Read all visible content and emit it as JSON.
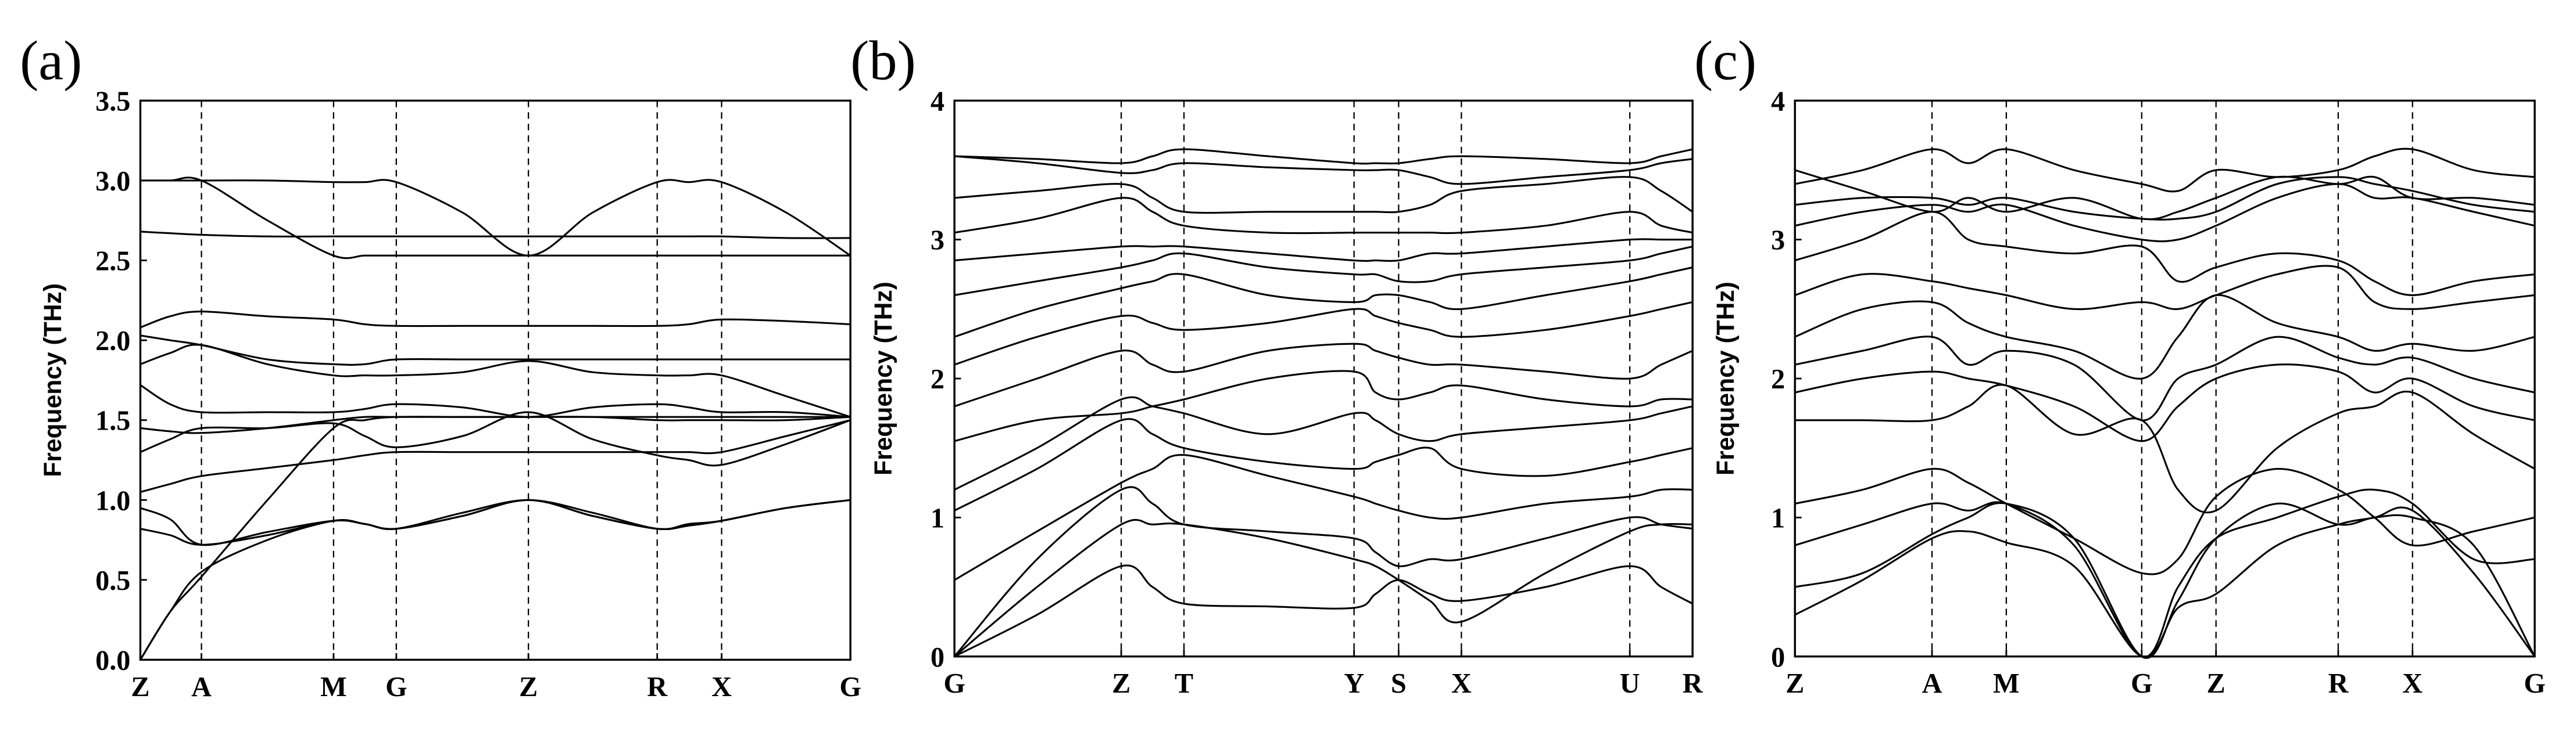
{
  "chart_data": [
    {
      "type": "line",
      "label": "(a)",
      "ylabel": "Frequency (THz)",
      "grid": true,
      "xlim": [
        0,
        430
      ],
      "ylim": [
        0,
        3.5
      ],
      "xticks": [
        {
          "value": 0,
          "label": "Z"
        },
        {
          "value": 37,
          "label": "A"
        },
        {
          "value": 117,
          "label": "M"
        },
        {
          "value": 155,
          "label": "G"
        },
        {
          "value": 235,
          "label": "Z"
        },
        {
          "value": 313,
          "label": "R"
        },
        {
          "value": 352,
          "label": "X"
        },
        {
          "value": 430,
          "label": "G"
        }
      ],
      "yticks": [
        {
          "value": 0,
          "label": "0.0"
        },
        0.5,
        {
          "value": 1,
          "label": "1.0"
        },
        1.5,
        {
          "value": 2,
          "label": "2.0"
        },
        2.5,
        {
          "value": 3,
          "label": "3.0"
        },
        3.5
      ],
      "x": [
        0,
        18,
        37,
        77,
        117,
        136,
        155,
        195,
        235,
        274,
        313,
        332,
        352,
        391,
        430
      ],
      "series": [
        {
          "color": "#000000",
          "values": [
            0,
            0.3,
            0.55,
            0.75,
            0.87,
            0.85,
            0.82,
            0.92,
            1.0,
            0.92,
            0.82,
            0.85,
            0.87,
            0.95,
            1.0
          ]
        },
        {
          "color": "#000000",
          "values": [
            0,
            0.3,
            0.52,
            1.0,
            1.45,
            1.5,
            1.52,
            1.52,
            1.52,
            1.52,
            1.5,
            1.5,
            1.5,
            1.5,
            1.52
          ]
        },
        {
          "color": "#000000",
          "values": [
            0.82,
            0.78,
            0.72,
            0.78,
            0.87,
            0.85,
            0.82,
            0.9,
            1.0,
            0.9,
            0.82,
            0.84,
            0.87,
            0.95,
            1.0
          ]
        },
        {
          "color": "#000000",
          "values": [
            1.05,
            1.1,
            1.15,
            1.2,
            1.25,
            1.28,
            1.3,
            1.3,
            1.3,
            1.3,
            1.3,
            1.3,
            1.3,
            1.4,
            1.5
          ]
        },
        {
          "color": "#000000",
          "values": [
            3.0,
            3.0,
            3.0,
            3.0,
            2.99,
            2.99,
            2.99,
            2.8,
            2.53,
            2.8,
            2.99,
            2.99,
            2.99,
            2.8,
            2.53
          ]
        },
        {
          "color": "#000000",
          "values": [
            3.0,
            3.0,
            3.0,
            2.75,
            2.53,
            2.53,
            2.53,
            2.53,
            2.53,
            2.53,
            2.53,
            2.53,
            2.53,
            2.53,
            2.53
          ]
        },
        {
          "color": "#000000",
          "values": [
            2.68,
            2.67,
            2.66,
            2.65,
            2.65,
            2.65,
            2.65,
            2.65,
            2.65,
            2.65,
            2.65,
            2.65,
            2.65,
            2.64,
            2.64
          ]
        },
        {
          "color": "#000000",
          "values": [
            2.08,
            2.15,
            2.18,
            2.15,
            2.13,
            2.1,
            2.09,
            2.09,
            2.09,
            2.09,
            2.09,
            2.1,
            2.13,
            2.12,
            2.1
          ]
        },
        {
          "color": "#000000",
          "values": [
            2.03,
            2.0,
            1.97,
            1.88,
            1.85,
            1.85,
            1.88,
            1.88,
            1.88,
            1.88,
            1.88,
            1.88,
            1.88,
            1.88,
            1.88
          ]
        },
        {
          "color": "#000000",
          "values": [
            1.85,
            1.92,
            1.97,
            1.85,
            1.78,
            1.78,
            1.78,
            1.8,
            1.87,
            1.8,
            1.78,
            1.78,
            1.78,
            1.65,
            1.52
          ]
        },
        {
          "color": "#000000",
          "values": [
            1.72,
            1.6,
            1.55,
            1.55,
            1.55,
            1.57,
            1.6,
            1.58,
            1.52,
            1.58,
            1.6,
            1.58,
            1.55,
            1.55,
            1.52
          ]
        },
        {
          "color": "#000000",
          "values": [
            1.45,
            1.43,
            1.42,
            1.45,
            1.5,
            1.52,
            1.52,
            1.52,
            1.52,
            1.52,
            1.52,
            1.52,
            1.52,
            1.52,
            1.52
          ]
        },
        {
          "color": "#000000",
          "values": [
            1.3,
            1.38,
            1.45,
            1.45,
            1.48,
            1.4,
            1.33,
            1.4,
            1.55,
            1.38,
            1.28,
            1.25,
            1.22,
            1.35,
            1.5
          ]
        },
        {
          "color": "#000000",
          "values": [
            0.95,
            0.88,
            0.72,
            0.8,
            0.87,
            0.85,
            0.82,
            0.9,
            1.0,
            0.9,
            0.82,
            0.84,
            0.87,
            0.95,
            1.0
          ]
        }
      ]
    },
    {
      "type": "line",
      "label": "(b)",
      "ylabel": "Frequency (THz)",
      "grid": true,
      "xlim": [
        0,
        447
      ],
      "ylim": [
        0,
        4
      ],
      "xticks": [
        {
          "value": 0,
          "label": "G"
        },
        {
          "value": 101,
          "label": "Z"
        },
        {
          "value": 139,
          "label": "T"
        },
        {
          "value": 242,
          "label": "Y"
        },
        {
          "value": 269,
          "label": "S"
        },
        {
          "value": 307,
          "label": "X"
        },
        {
          "value": 409,
          "label": "U"
        },
        {
          "value": 447,
          "label": "R"
        }
      ],
      "yticks": [
        0,
        1,
        2,
        3,
        4
      ],
      "x": [
        0,
        50,
        101,
        120,
        139,
        190,
        242,
        255,
        269,
        288,
        307,
        358,
        409,
        428,
        447
      ],
      "series": [
        {
          "color": "#000000",
          "values": [
            0,
            0.3,
            0.65,
            0.5,
            0.38,
            0.36,
            0.35,
            0.45,
            0.55,
            0.45,
            0.4,
            0.5,
            0.65,
            0.5,
            0.38
          ]
        },
        {
          "color": "#000000",
          "values": [
            0,
            0.5,
            0.95,
            0.95,
            0.95,
            0.85,
            0.7,
            0.65,
            0.55,
            0.4,
            0.25,
            0.6,
            0.9,
            0.95,
            0.95
          ]
        },
        {
          "color": "#000000",
          "values": [
            0,
            0.7,
            1.2,
            1.1,
            0.95,
            0.9,
            0.85,
            0.75,
            0.65,
            0.7,
            0.7,
            0.85,
            1.0,
            0.95,
            0.92
          ]
        },
        {
          "color": "#000000",
          "values": [
            0.55,
            0.9,
            1.25,
            1.35,
            1.45,
            1.3,
            1.15,
            1.1,
            1.05,
            1.0,
            1.0,
            1.1,
            1.15,
            1.2,
            1.2
          ]
        },
        {
          "color": "#000000",
          "values": [
            1.05,
            1.35,
            1.7,
            1.6,
            1.5,
            1.4,
            1.35,
            1.4,
            1.45,
            1.5,
            1.35,
            1.3,
            1.4,
            1.45,
            1.5
          ]
        },
        {
          "color": "#000000",
          "values": [
            1.2,
            1.5,
            1.85,
            1.8,
            1.75,
            1.6,
            1.75,
            1.7,
            1.6,
            1.55,
            1.6,
            1.65,
            1.7,
            1.75,
            1.8
          ]
        },
        {
          "color": "#000000",
          "values": [
            1.55,
            1.7,
            1.75,
            1.8,
            1.85,
            2.0,
            2.05,
            1.9,
            1.85,
            1.9,
            1.95,
            1.85,
            1.8,
            1.85,
            1.85
          ]
        },
        {
          "color": "#000000",
          "values": [
            1.8,
            2.0,
            2.2,
            2.1,
            2.05,
            2.2,
            2.25,
            2.2,
            2.15,
            2.1,
            2.1,
            2.05,
            2.0,
            2.1,
            2.2
          ]
        },
        {
          "color": "#000000",
          "values": [
            2.1,
            2.3,
            2.45,
            2.4,
            2.35,
            2.4,
            2.5,
            2.45,
            2.4,
            2.35,
            2.3,
            2.35,
            2.45,
            2.5,
            2.55
          ]
        },
        {
          "color": "#000000",
          "values": [
            2.3,
            2.5,
            2.65,
            2.7,
            2.75,
            2.6,
            2.55,
            2.6,
            2.6,
            2.55,
            2.5,
            2.6,
            2.7,
            2.75,
            2.8
          ]
        },
        {
          "color": "#000000",
          "values": [
            2.6,
            2.7,
            2.8,
            2.85,
            2.9,
            2.8,
            2.75,
            2.75,
            2.7,
            2.7,
            2.75,
            2.8,
            2.85,
            2.9,
            2.95
          ]
        },
        {
          "color": "#000000",
          "values": [
            2.85,
            2.9,
            2.95,
            2.95,
            2.95,
            2.9,
            2.85,
            2.85,
            2.85,
            2.9,
            2.9,
            2.95,
            3.0,
            3.0,
            3.0
          ]
        },
        {
          "color": "#000000",
          "values": [
            3.05,
            3.15,
            3.3,
            3.2,
            3.1,
            3.05,
            3.05,
            3.05,
            3.05,
            3.05,
            3.05,
            3.1,
            3.2,
            3.1,
            3.05
          ]
        },
        {
          "color": "#000000",
          "values": [
            3.3,
            3.35,
            3.4,
            3.3,
            3.2,
            3.2,
            3.2,
            3.2,
            3.2,
            3.25,
            3.35,
            3.4,
            3.45,
            3.35,
            3.2
          ]
        },
        {
          "color": "#000000",
          "values": [
            3.6,
            3.58,
            3.55,
            3.6,
            3.65,
            3.6,
            3.55,
            3.55,
            3.55,
            3.58,
            3.6,
            3.58,
            3.55,
            3.6,
            3.65
          ]
        },
        {
          "color": "#000000",
          "values": [
            3.6,
            3.55,
            3.48,
            3.5,
            3.55,
            3.52,
            3.5,
            3.5,
            3.5,
            3.45,
            3.4,
            3.45,
            3.5,
            3.55,
            3.58
          ]
        }
      ]
    },
    {
      "type": "line",
      "label": "(c)",
      "ylabel": "Frequency (THz)",
      "grid": true,
      "xlim": [
        0,
        448
      ],
      "ylim": [
        0,
        4
      ],
      "xticks": [
        {
          "value": 0,
          "label": "Z"
        },
        {
          "value": 83,
          "label": "A"
        },
        {
          "value": 128,
          "label": "M"
        },
        {
          "value": 210,
          "label": "G"
        },
        {
          "value": 255,
          "label": "Z"
        },
        {
          "value": 329,
          "label": "R"
        },
        {
          "value": 374,
          "label": "X"
        },
        {
          "value": 448,
          "label": "G"
        }
      ],
      "yticks": [
        0,
        1,
        2,
        3,
        4
      ],
      "x": [
        0,
        41,
        83,
        105,
        128,
        169,
        210,
        232,
        255,
        292,
        329,
        351,
        374,
        411,
        448
      ],
      "series": [
        {
          "color": "#000000",
          "values": [
            0.3,
            0.55,
            0.85,
            0.9,
            0.82,
            0.65,
            0,
            0.35,
            0.45,
            0.8,
            0.95,
            1.0,
            1.05,
            0.6,
            0
          ]
        },
        {
          "color": "#000000",
          "values": [
            0.5,
            0.6,
            0.88,
            1.0,
            1.1,
            0.85,
            0,
            0.4,
            0.85,
            1.1,
            0.95,
            1.0,
            1.0,
            0.8,
            0
          ]
        },
        {
          "color": "#000000",
          "values": [
            0.8,
            0.95,
            1.1,
            1.05,
            1.1,
            0.8,
            0,
            0.5,
            0.85,
            1.0,
            1.15,
            1.2,
            1.1,
            0.7,
            0.7
          ]
        },
        {
          "color": "#000000",
          "values": [
            1.1,
            1.2,
            1.35,
            1.25,
            1.1,
            0.85,
            0.6,
            0.7,
            1.15,
            1.35,
            1.2,
            1.0,
            0.8,
            0.9,
            1.0
          ]
        },
        {
          "color": "#000000",
          "values": [
            1.7,
            1.7,
            1.7,
            1.8,
            1.95,
            1.6,
            1.7,
            1.2,
            1.05,
            1.5,
            1.75,
            1.8,
            1.9,
            1.6,
            1.35
          ]
        },
        {
          "color": "#000000",
          "values": [
            1.9,
            2.0,
            2.05,
            2.0,
            1.95,
            1.8,
            1.55,
            1.8,
            2.0,
            2.1,
            2.05,
            1.9,
            2.0,
            1.8,
            1.7
          ]
        },
        {
          "color": "#000000",
          "values": [
            2.1,
            2.2,
            2.3,
            2.1,
            2.2,
            2.1,
            1.7,
            2.0,
            2.1,
            2.3,
            2.15,
            2.1,
            2.15,
            2.0,
            1.9
          ]
        },
        {
          "color": "#000000",
          "values": [
            2.3,
            2.5,
            2.55,
            2.4,
            2.3,
            2.2,
            2.0,
            2.3,
            2.6,
            2.4,
            2.3,
            2.2,
            2.25,
            2.2,
            2.3
          ]
        },
        {
          "color": "#000000",
          "values": [
            2.6,
            2.75,
            2.7,
            2.65,
            2.6,
            2.5,
            2.55,
            2.5,
            2.6,
            2.75,
            2.8,
            2.55,
            2.5,
            2.55,
            2.6
          ]
        },
        {
          "color": "#000000",
          "values": [
            2.85,
            3.0,
            3.2,
            3.0,
            2.95,
            2.9,
            2.95,
            2.7,
            2.8,
            2.9,
            2.85,
            2.7,
            2.6,
            2.7,
            2.75
          ]
        },
        {
          "color": "#000000",
          "values": [
            3.1,
            3.2,
            3.25,
            3.2,
            3.25,
            3.1,
            3.0,
            3.0,
            3.1,
            3.3,
            3.4,
            3.3,
            3.3,
            3.2,
            3.1
          ]
        },
        {
          "color": "#000000",
          "values": [
            3.25,
            3.3,
            3.3,
            3.25,
            3.3,
            3.2,
            3.15,
            3.15,
            3.2,
            3.4,
            3.45,
            3.4,
            3.35,
            3.25,
            3.2
          ]
        },
        {
          "color": "#000000",
          "values": [
            3.4,
            3.5,
            3.65,
            3.55,
            3.65,
            3.5,
            3.4,
            3.35,
            3.5,
            3.45,
            3.5,
            3.6,
            3.65,
            3.5,
            3.45
          ]
        },
        {
          "color": "#000000",
          "values": [
            3.5,
            3.35,
            3.2,
            3.3,
            3.2,
            3.3,
            3.15,
            3.2,
            3.3,
            3.45,
            3.4,
            3.45,
            3.3,
            3.3,
            3.25
          ]
        }
      ]
    }
  ]
}
